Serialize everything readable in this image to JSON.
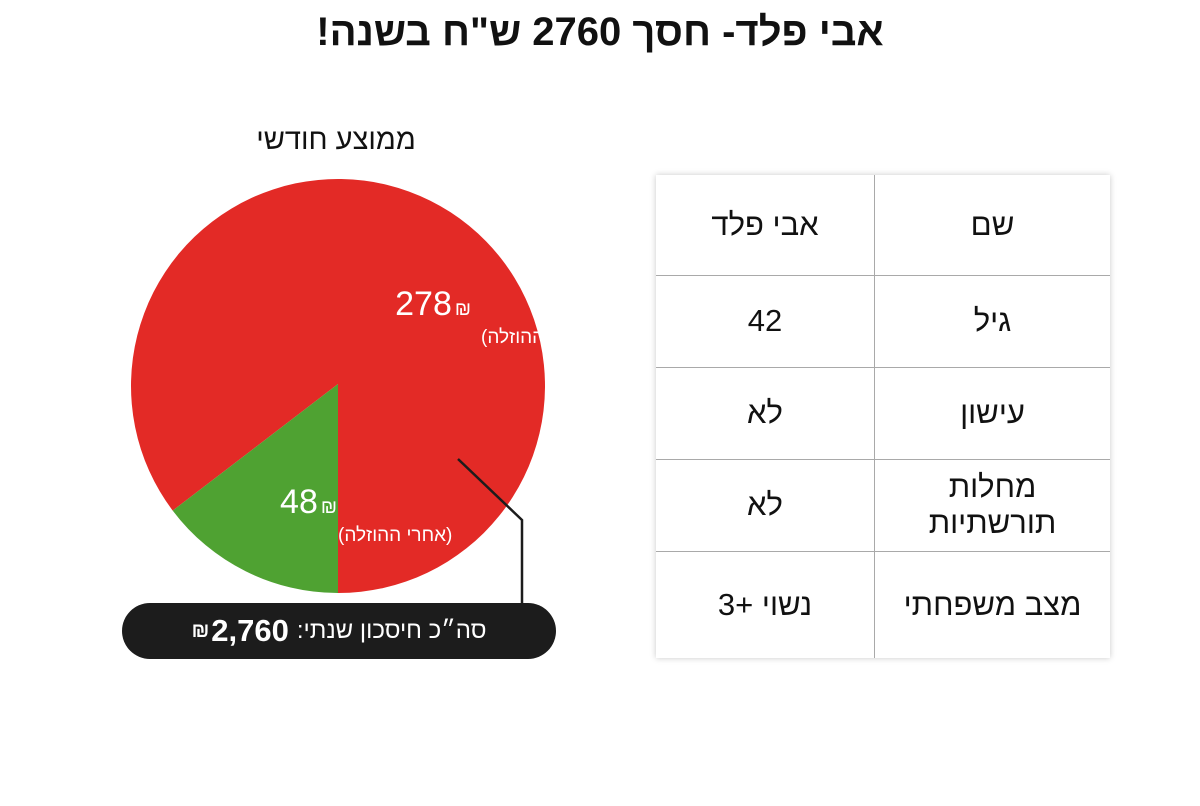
{
  "title": "אבי פלד- חסך 2760 ש\"ח בשנה!",
  "chart_data": {
    "type": "pie",
    "title": "ממוצע חודשי",
    "currency_symbol": "₪",
    "slices": [
      {
        "value": 278,
        "label": "278",
        "note": "(לפני ההוזלה)",
        "color": "#e32a26"
      },
      {
        "value": 48,
        "label": "48",
        "note": "(אחרי ההוזלה)",
        "color": "#4fa232"
      }
    ],
    "total_annual_savings": {
      "label": "סה״כ חיסכון שנתי:",
      "value": "2,760",
      "currency": "₪"
    }
  },
  "table": {
    "rows": [
      {
        "key": "שם",
        "value": "אבי פלד"
      },
      {
        "key": "גיל",
        "value": "42"
      },
      {
        "key": "עישון",
        "value": "לא"
      },
      {
        "key": "מחלות תורשתיות",
        "value": "לא"
      },
      {
        "key": "מצב משפחתי",
        "value": "נשוי +3"
      }
    ]
  }
}
